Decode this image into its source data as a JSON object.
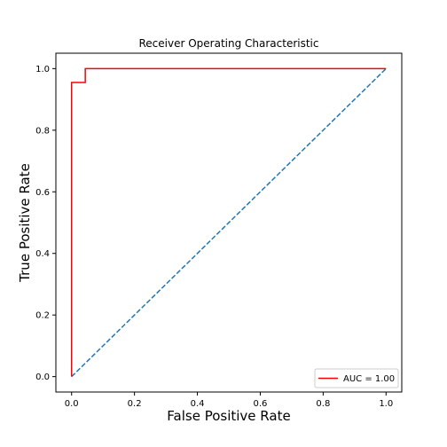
{
  "chart_data": {
    "type": "line",
    "title": "Receiver Operating Characteristic",
    "xlabel": "False Positive Rate",
    "ylabel": "True Positive Rate",
    "xlim": [
      -0.05,
      1.05
    ],
    "ylim": [
      -0.05,
      1.05
    ],
    "x_ticks": [
      0.0,
      0.2,
      0.4,
      0.6,
      0.8,
      1.0
    ],
    "y_ticks": [
      0.0,
      0.2,
      0.4,
      0.6,
      0.8,
      1.0
    ],
    "x_tick_labels": [
      "0.0",
      "0.2",
      "0.4",
      "0.6",
      "0.8",
      "1.0"
    ],
    "y_tick_labels": [
      "0.0",
      "0.2",
      "0.4",
      "0.6",
      "0.8",
      "1.0"
    ],
    "grid": false,
    "legend_position": "lower-right",
    "series": [
      {
        "name": "AUC = 1.00",
        "color": "#ff0000",
        "style": "solid",
        "x": [
          0.0,
          0.0,
          0.0,
          0.0435,
          0.0435,
          1.0
        ],
        "y": [
          0.0,
          0.955,
          0.955,
          0.955,
          1.0,
          1.0
        ]
      },
      {
        "color": "#1f77b4",
        "style": "dashed",
        "x": [
          0.0,
          1.0
        ],
        "y": [
          0.0,
          1.0
        ]
      }
    ]
  }
}
